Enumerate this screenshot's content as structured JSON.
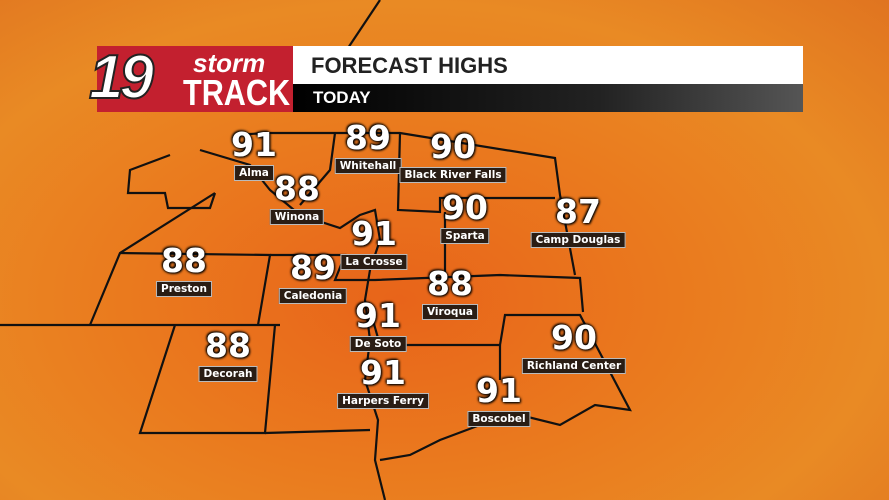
{
  "header": {
    "logo_number": "19",
    "logo_line1": "storm",
    "logo_line2": "TRACK",
    "title": "FORECAST HIGHS",
    "subtitle": "TODAY",
    "brand_color": "#c3202f"
  },
  "stations": [
    {
      "name": "Alma",
      "temp": "91"
    },
    {
      "name": "Whitehall",
      "temp": "89"
    },
    {
      "name": "Black River Falls",
      "temp": "90"
    },
    {
      "name": "Winona",
      "temp": "88"
    },
    {
      "name": "Sparta",
      "temp": "90"
    },
    {
      "name": "Camp Douglas",
      "temp": "87"
    },
    {
      "name": "La Crosse",
      "temp": "91"
    },
    {
      "name": "Preston",
      "temp": "88"
    },
    {
      "name": "Caledonia",
      "temp": "89"
    },
    {
      "name": "Viroqua",
      "temp": "88"
    },
    {
      "name": "De Soto",
      "temp": "91"
    },
    {
      "name": "Richland Center",
      "temp": "90"
    },
    {
      "name": "Decorah",
      "temp": "88"
    },
    {
      "name": "Harpers Ferry",
      "temp": "91"
    },
    {
      "name": "Boscobel",
      "temp": "91"
    }
  ]
}
